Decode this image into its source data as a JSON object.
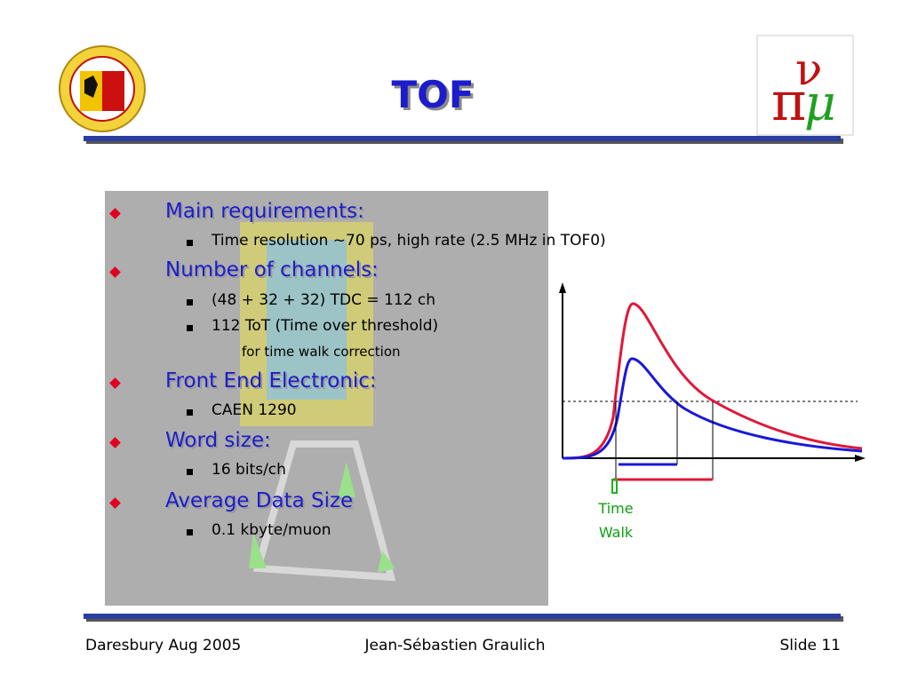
{
  "header": {
    "title": "TOF"
  },
  "bullets": [
    {
      "text": "Main requirements:",
      "items": [
        "Time resolution ~70 ps, high rate (2.5 MHz in TOF0)"
      ]
    },
    {
      "text": "Number of channels:",
      "items": [
        "(48 + 32 + 32) TDC = 112 ch",
        "112 ToT (Time over threshold)"
      ],
      "continuation": "for time walk correction"
    },
    {
      "text": "Front End Electronic:",
      "items": [
        "CAEN 1290"
      ]
    },
    {
      "text": "Word size:",
      "items": [
        "16 bits/ch"
      ]
    },
    {
      "text": "Average Data Size",
      "items": [
        "0.1 kbyte/muon"
      ]
    }
  ],
  "figure": {
    "label": [
      "Time",
      "Walk"
    ]
  },
  "footer": {
    "left": "Daresbury Aug 2005",
    "center": "Jean-Sébastien Graulich",
    "right": "Slide 11"
  }
}
